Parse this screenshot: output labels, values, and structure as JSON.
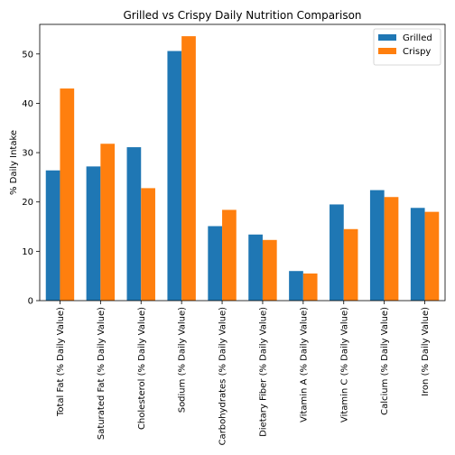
{
  "chart_data": {
    "type": "bar",
    "title": "Grilled vs Crispy Daily Nutrition Comparison",
    "xlabel": "",
    "ylabel": "% Daily Intake",
    "ylim": [
      0,
      56
    ],
    "yticks": [
      0,
      10,
      20,
      30,
      40,
      50
    ],
    "categories": [
      "Total Fat (% Daily Value)",
      "Saturated Fat (% Daily Value)",
      "Cholesterol (% Daily Value)",
      "Sodium (% Daily Value)",
      "Carbohydrates (% Daily Value)",
      "Dietary Fiber (% Daily Value)",
      "Vitamin A (% Daily Value)",
      "Vitamin C (% Daily Value)",
      "Calcium (% Daily Value)",
      "Iron (% Daily Value)"
    ],
    "series": [
      {
        "name": "Grilled",
        "color": "#1f77b4",
        "values": [
          26.4,
          27.2,
          31.1,
          50.6,
          15.1,
          13.4,
          6.0,
          19.5,
          22.4,
          18.8
        ]
      },
      {
        "name": "Crispy",
        "color": "#ff7f0e",
        "values": [
          43.0,
          31.8,
          22.8,
          53.6,
          18.4,
          12.3,
          5.5,
          14.5,
          21.0,
          18.0
        ]
      }
    ],
    "legend": {
      "location": "top-right"
    },
    "grid": false
  }
}
